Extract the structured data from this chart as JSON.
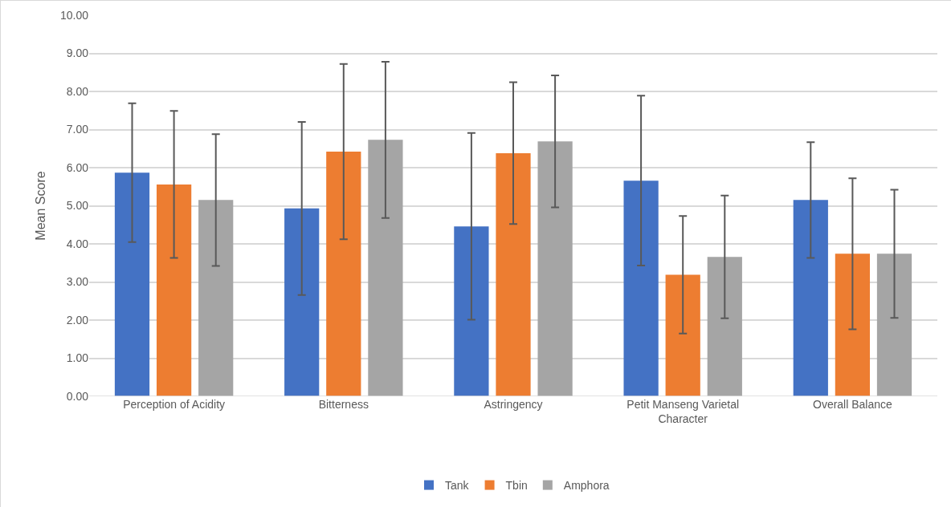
{
  "chart_data": {
    "type": "bar",
    "ylabel": "Mean Score",
    "categories": [
      "Perception of Acidity",
      "Bitterness",
      "Astringency",
      "Petit Manseng Varietal Character",
      "Overall Balance"
    ],
    "series": [
      {
        "name": "Tank",
        "color": "#4472c4",
        "values": [
          5.87,
          4.93,
          4.46,
          5.66,
          5.15
        ],
        "errors": [
          1.82,
          2.27,
          2.45,
          2.23,
          1.52
        ]
      },
      {
        "name": "Tbin",
        "color": "#ed7d31",
        "values": [
          5.56,
          6.42,
          6.38,
          3.19,
          3.74
        ],
        "errors": [
          1.93,
          2.3,
          1.86,
          1.54,
          1.98
        ]
      },
      {
        "name": "Amphora",
        "color": "#a5a5a5",
        "values": [
          5.15,
          6.73,
          6.69,
          3.66,
          3.74
        ],
        "errors": [
          1.73,
          2.05,
          1.73,
          1.61,
          1.68
        ]
      }
    ],
    "ylim": [
      0,
      10
    ],
    "yticks": [
      {
        "value": 0,
        "label": "0.00"
      },
      {
        "value": 1,
        "label": "1.00"
      },
      {
        "value": 2,
        "label": "2.00"
      },
      {
        "value": 3,
        "label": "3.00"
      },
      {
        "value": 4,
        "label": "4.00"
      },
      {
        "value": 5,
        "label": "5.00"
      },
      {
        "value": 6,
        "label": "6.00"
      },
      {
        "value": 7,
        "label": "7.00"
      },
      {
        "value": 8,
        "label": "8.00"
      },
      {
        "value": 9,
        "label": "9.00"
      },
      {
        "value": 10,
        "label": "10.00"
      }
    ],
    "grid": "y",
    "legend": "bottom"
  }
}
